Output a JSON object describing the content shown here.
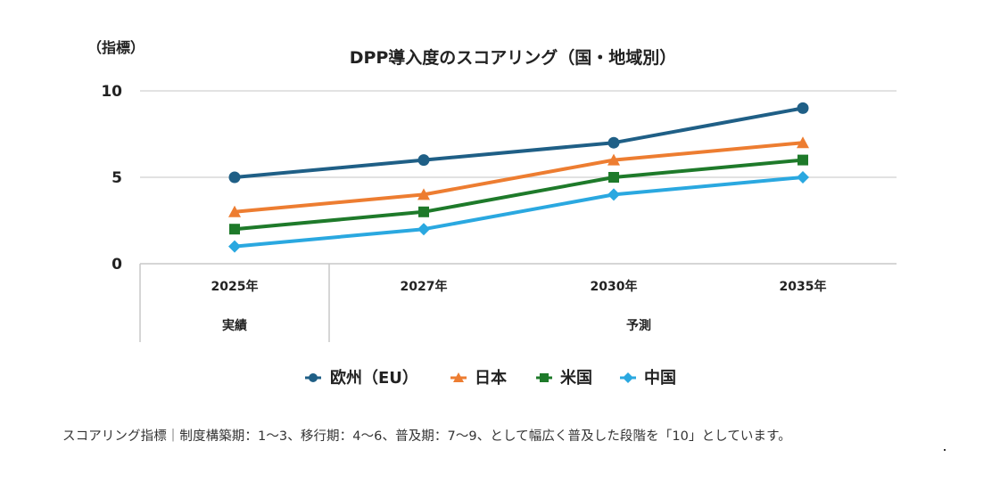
{
  "chart_data": {
    "type": "line",
    "title": "DPP導入度のスコアリング（国・地域別）",
    "ylabel": "（指標）",
    "ylim": [
      0,
      10
    ],
    "yticks": [
      "0",
      "5",
      "10"
    ],
    "categories": [
      "2025年",
      "2027年",
      "2030年",
      "2035年"
    ],
    "category_groups": [
      {
        "label": "実績",
        "span": [
          "2025年"
        ]
      },
      {
        "label": "予測",
        "span": [
          "2027年",
          "2030年",
          "2035年"
        ]
      }
    ],
    "series": [
      {
        "name": "欧州（EU）",
        "values": [
          5,
          6,
          7,
          9
        ],
        "color": "#1f5f86",
        "marker": "circle"
      },
      {
        "name": "日本",
        "values": [
          3,
          4,
          6,
          7
        ],
        "color": "#ed7d31",
        "marker": "triangle"
      },
      {
        "name": "米国",
        "values": [
          2,
          3,
          5,
          6
        ],
        "color": "#1e7a2a",
        "marker": "square"
      },
      {
        "name": "中国",
        "values": [
          1,
          2,
          4,
          5
        ],
        "color": "#2aa8e0",
        "marker": "diamond"
      }
    ],
    "grid": true,
    "legend": "bottom"
  },
  "footnote": "スコアリング指標｜制度構築期：1～3、移行期：4～6、普及期：7～9、として幅広く普及した段階を「10」としています。"
}
